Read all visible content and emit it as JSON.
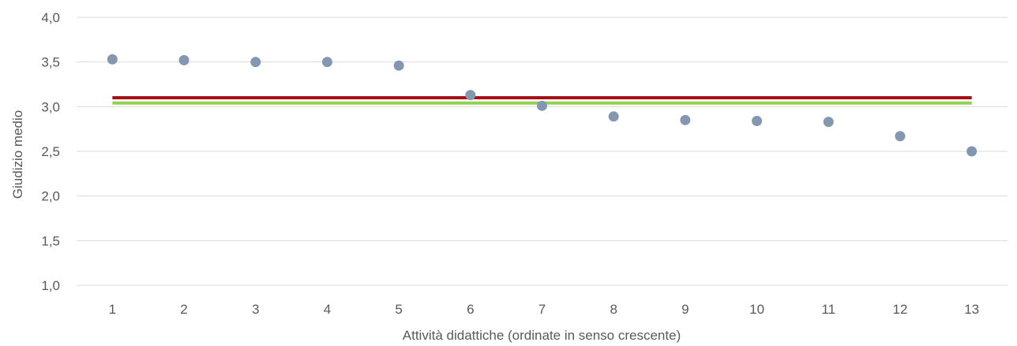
{
  "chart_data": {
    "type": "scatter",
    "xlabel": "Attività didattiche (ordinate in senso crescente)",
    "ylabel": "Giudizio medio",
    "ylim": [
      1.0,
      4.0
    ],
    "y_ticks": [
      "1,0",
      "1,5",
      "2,0",
      "2,5",
      "3,0",
      "3,5",
      "4,0"
    ],
    "x_ticks": [
      "1",
      "2",
      "3",
      "4",
      "5",
      "6",
      "7",
      "8",
      "9",
      "10",
      "11",
      "12",
      "13"
    ],
    "grid": "horizontal",
    "points": {
      "x": [
        1,
        2,
        3,
        4,
        5,
        6,
        7,
        8,
        9,
        10,
        11,
        12,
        13
      ],
      "y": [
        3.53,
        3.52,
        3.5,
        3.5,
        3.46,
        3.13,
        3.01,
        2.89,
        2.85,
        2.84,
        2.83,
        2.67,
        2.5
      ],
      "color": "#8497b0"
    },
    "reference_lines": [
      {
        "y": 3.1,
        "color": "#a50f15"
      },
      {
        "y": 3.04,
        "color": "#92d050"
      }
    ]
  }
}
